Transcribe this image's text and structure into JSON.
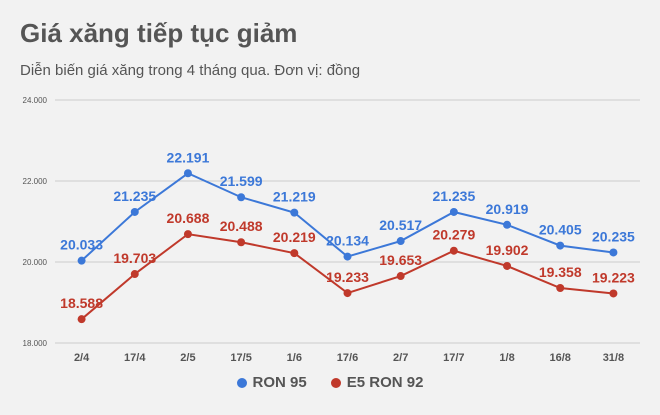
{
  "title": "Giá xăng tiếp tục giảm",
  "subtitle": "Diễn biến giá xăng trong 4 tháng qua. Đơn vị: đồng",
  "colors": {
    "ron95": "#3c78d8",
    "e5ron92": "#c0392b",
    "grid": "#cccccc",
    "text": "#555555"
  },
  "chart_data": {
    "type": "line",
    "categories": [
      "2/4",
      "17/4",
      "2/5",
      "17/5",
      "1/6",
      "17/6",
      "2/7",
      "17/7",
      "1/8",
      "16/8",
      "31/8"
    ],
    "series": [
      {
        "name": "RON 95",
        "values": [
          20033,
          21235,
          22191,
          21599,
          21219,
          20134,
          20517,
          21235,
          20919,
          20405,
          20235
        ],
        "labels": [
          "20.033",
          "21.235",
          "22.191",
          "21.599",
          "21.219",
          "20.134",
          "20.517",
          "21.235",
          "20.919",
          "20.405",
          "20.235"
        ]
      },
      {
        "name": "E5 RON 92",
        "values": [
          18588,
          19703,
          20688,
          20488,
          20219,
          19233,
          19653,
          20279,
          19902,
          19358,
          19223
        ],
        "labels": [
          "18.588",
          "19.703",
          "20.688",
          "20.488",
          "20.219",
          "19.233",
          "19.653",
          "20.279",
          "19.902",
          "19.358",
          "19.223"
        ]
      }
    ],
    "ylim": [
      18000,
      24000
    ],
    "yticks": [
      18000,
      20000,
      22000,
      24000
    ],
    "ytick_labels": [
      "18.000",
      "20.000",
      "22.000",
      "24.000"
    ],
    "grid": true,
    "legend": "bottom-center"
  }
}
